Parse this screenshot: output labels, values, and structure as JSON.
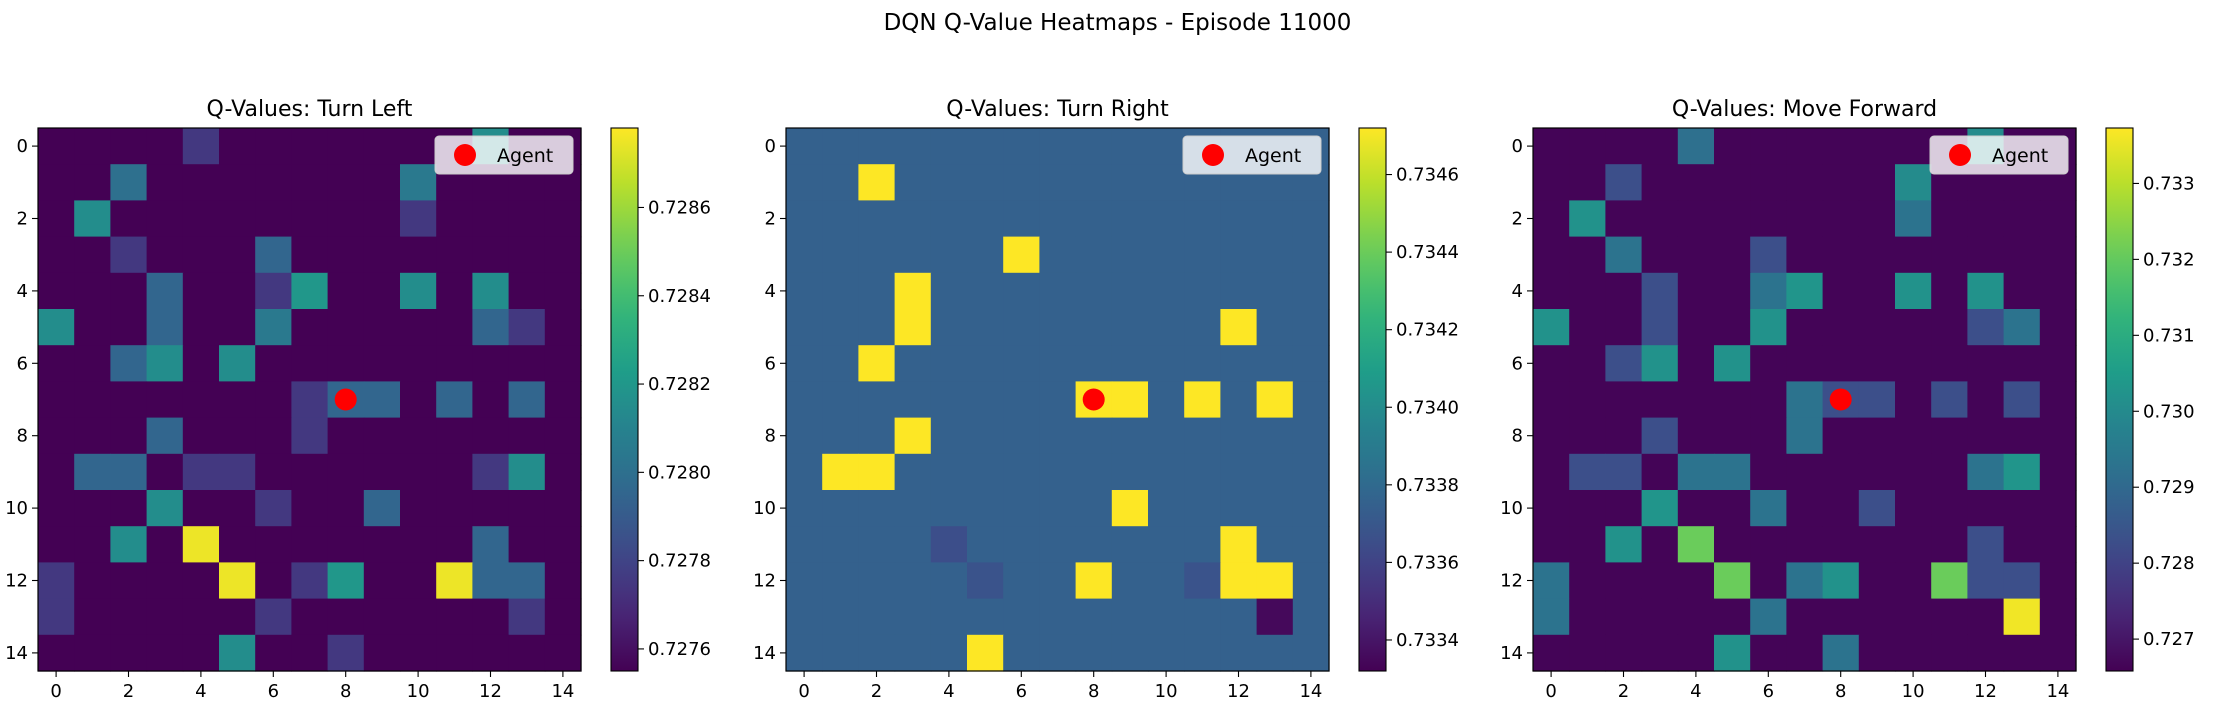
{
  "figure": {
    "suptitle": "DQN Q-Value Heatmaps - Episode 11000"
  },
  "chart_data": [
    {
      "type": "heatmap",
      "title": "Q-Values: Turn Left",
      "cmap": "viridis",
      "background": 0.72755,
      "hot": [
        [
          0,
          12,
          0.72815
        ],
        [
          0,
          4,
          0.72775
        ],
        [
          1,
          2,
          0.728
        ],
        [
          1,
          10,
          0.72805
        ],
        [
          2,
          1,
          0.72815
        ],
        [
          2,
          10,
          0.72775
        ],
        [
          3,
          2,
          0.72775
        ],
        [
          3,
          6,
          0.72795
        ],
        [
          4,
          3,
          0.72795
        ],
        [
          4,
          6,
          0.72775
        ],
        [
          4,
          7,
          0.7282
        ],
        [
          4,
          10,
          0.72815
        ],
        [
          4,
          12,
          0.72815
        ],
        [
          5,
          0,
          0.72815
        ],
        [
          5,
          3,
          0.72795
        ],
        [
          5,
          6,
          0.72805
        ],
        [
          5,
          12,
          0.72795
        ],
        [
          5,
          13,
          0.72775
        ],
        [
          6,
          2,
          0.72795
        ],
        [
          6,
          3,
          0.72815
        ],
        [
          6,
          5,
          0.72815
        ],
        [
          7,
          7,
          0.72775
        ],
        [
          7,
          8,
          0.72795
        ],
        [
          7,
          9,
          0.72795
        ],
        [
          7,
          11,
          0.72795
        ],
        [
          7,
          13,
          0.72795
        ],
        [
          8,
          3,
          0.72795
        ],
        [
          8,
          7,
          0.72775
        ],
        [
          9,
          1,
          0.72795
        ],
        [
          9,
          2,
          0.72795
        ],
        [
          9,
          4,
          0.72775
        ],
        [
          9,
          5,
          0.72775
        ],
        [
          9,
          12,
          0.72775
        ],
        [
          9,
          13,
          0.72815
        ],
        [
          10,
          3,
          0.72815
        ],
        [
          10,
          6,
          0.72775
        ],
        [
          10,
          9,
          0.72795
        ],
        [
          11,
          2,
          0.72815
        ],
        [
          11,
          4,
          0.72875
        ],
        [
          11,
          12,
          0.72795
        ],
        [
          12,
          0,
          0.72775
        ],
        [
          12,
          5,
          0.72875
        ],
        [
          12,
          7,
          0.72775
        ],
        [
          12,
          8,
          0.7282
        ],
        [
          12,
          11,
          0.72875
        ],
        [
          12,
          12,
          0.72795
        ],
        [
          12,
          13,
          0.72795
        ],
        [
          13,
          0,
          0.72775
        ],
        [
          13,
          6,
          0.72775
        ],
        [
          13,
          13,
          0.72775
        ],
        [
          14,
          5,
          0.72815
        ],
        [
          14,
          8,
          0.72775
        ]
      ],
      "vmin": 0.72755,
      "vmax": 0.72878,
      "colorbar_ticks": [
        0.7276,
        0.7278,
        0.728,
        0.7282,
        0.7284,
        0.7286
      ],
      "colorbar_tick_labels": [
        "0.7276",
        "0.7278",
        "0.7280",
        "0.7282",
        "0.7284",
        "0.7286"
      ],
      "agent": {
        "row": 7,
        "col": 8,
        "label": "Agent"
      },
      "xticks": [
        0,
        2,
        4,
        6,
        8,
        10,
        12,
        14
      ],
      "yticks": [
        0,
        2,
        4,
        6,
        8,
        10,
        12,
        14
      ],
      "legend": "top-right"
    },
    {
      "type": "heatmap",
      "title": "Q-Values: Turn Right",
      "cmap": "viridis",
      "background": 0.73375,
      "hot": [
        [
          1,
          2,
          0.73472
        ],
        [
          3,
          6,
          0.73472
        ],
        [
          4,
          3,
          0.73472
        ],
        [
          5,
          3,
          0.73472
        ],
        [
          5,
          12,
          0.73472
        ],
        [
          6,
          2,
          0.73472
        ],
        [
          7,
          8,
          0.73472
        ],
        [
          7,
          9,
          0.73472
        ],
        [
          7,
          11,
          0.73472
        ],
        [
          7,
          13,
          0.73472
        ],
        [
          8,
          3,
          0.73472
        ],
        [
          9,
          1,
          0.73472
        ],
        [
          9,
          2,
          0.73472
        ],
        [
          10,
          9,
          0.73472
        ],
        [
          11,
          4,
          0.73365
        ],
        [
          11,
          12,
          0.73472
        ],
        [
          12,
          5,
          0.73368
        ],
        [
          12,
          8,
          0.73472
        ],
        [
          12,
          11,
          0.73368
        ],
        [
          12,
          12,
          0.73472
        ],
        [
          12,
          13,
          0.73472
        ],
        [
          13,
          13,
          0.73335
        ],
        [
          14,
          5,
          0.73472
        ]
      ],
      "vmin": 0.73332,
      "vmax": 0.73472,
      "colorbar_ticks": [
        0.7334,
        0.7336,
        0.7338,
        0.734,
        0.7342,
        0.7344,
        0.7346
      ],
      "colorbar_tick_labels": [
        "0.7334",
        "0.7336",
        "0.7338",
        "0.7340",
        "0.7342",
        "0.7344",
        "0.7346"
      ],
      "agent": {
        "row": 7,
        "col": 8,
        "label": "Agent"
      },
      "xticks": [
        0,
        2,
        4,
        6,
        8,
        10,
        12,
        14
      ],
      "yticks": [
        0,
        2,
        4,
        6,
        8,
        10,
        12,
        14
      ],
      "legend": "top-right"
    },
    {
      "type": "heatmap",
      "title": "Q-Values: Move Forward",
      "cmap": "viridis",
      "background": 0.72665,
      "hot": [
        [
          0,
          4,
          0.7292
        ],
        [
          0,
          12,
          0.73
        ],
        [
          1,
          2,
          0.7283
        ],
        [
          1,
          10,
          0.73
        ],
        [
          2,
          1,
          0.7302
        ],
        [
          2,
          10,
          0.7293
        ],
        [
          3,
          2,
          0.7293
        ],
        [
          3,
          6,
          0.7283
        ],
        [
          4,
          3,
          0.7283
        ],
        [
          4,
          6,
          0.7293
        ],
        [
          4,
          7,
          0.7303
        ],
        [
          4,
          10,
          0.7302
        ],
        [
          4,
          12,
          0.7302
        ],
        [
          5,
          0,
          0.7302
        ],
        [
          5,
          3,
          0.7283
        ],
        [
          5,
          6,
          0.7302
        ],
        [
          5,
          12,
          0.7283
        ],
        [
          5,
          13,
          0.7293
        ],
        [
          6,
          2,
          0.7283
        ],
        [
          6,
          3,
          0.7302
        ],
        [
          6,
          5,
          0.7302
        ],
        [
          7,
          7,
          0.7293
        ],
        [
          7,
          8,
          0.7283
        ],
        [
          7,
          9,
          0.7283
        ],
        [
          7,
          11,
          0.7283
        ],
        [
          7,
          13,
          0.7283
        ],
        [
          8,
          3,
          0.7283
        ],
        [
          8,
          7,
          0.7293
        ],
        [
          9,
          1,
          0.7283
        ],
        [
          9,
          2,
          0.7283
        ],
        [
          9,
          4,
          0.7293
        ],
        [
          9,
          5,
          0.7293
        ],
        [
          9,
          12,
          0.7293
        ],
        [
          9,
          13,
          0.7303
        ],
        [
          10,
          3,
          0.7303
        ],
        [
          10,
          6,
          0.7293
        ],
        [
          10,
          9,
          0.7283
        ],
        [
          11,
          2,
          0.7302
        ],
        [
          11,
          4,
          0.7321
        ],
        [
          11,
          12,
          0.7283
        ],
        [
          12,
          0,
          0.7293
        ],
        [
          12,
          5,
          0.7321
        ],
        [
          12,
          7,
          0.7293
        ],
        [
          12,
          8,
          0.7302
        ],
        [
          12,
          11,
          0.7321
        ],
        [
          12,
          12,
          0.7283
        ],
        [
          12,
          13,
          0.7283
        ],
        [
          13,
          0,
          0.7293
        ],
        [
          13,
          6,
          0.7293
        ],
        [
          13,
          13,
          0.7336
        ],
        [
          14,
          5,
          0.7302
        ],
        [
          14,
          8,
          0.7293
        ]
      ],
      "vmin": 0.72658,
      "vmax": 0.73373,
      "colorbar_ticks": [
        0.727,
        0.728,
        0.729,
        0.73,
        0.731,
        0.732,
        0.733
      ],
      "colorbar_tick_labels": [
        "0.727",
        "0.728",
        "0.729",
        "0.730",
        "0.731",
        "0.732",
        "0.733"
      ],
      "agent": {
        "row": 7,
        "col": 8,
        "label": "Agent"
      },
      "xticks": [
        0,
        2,
        4,
        6,
        8,
        10,
        12,
        14
      ],
      "yticks": [
        0,
        2,
        4,
        6,
        8,
        10,
        12,
        14
      ],
      "legend": "top-right"
    }
  ]
}
